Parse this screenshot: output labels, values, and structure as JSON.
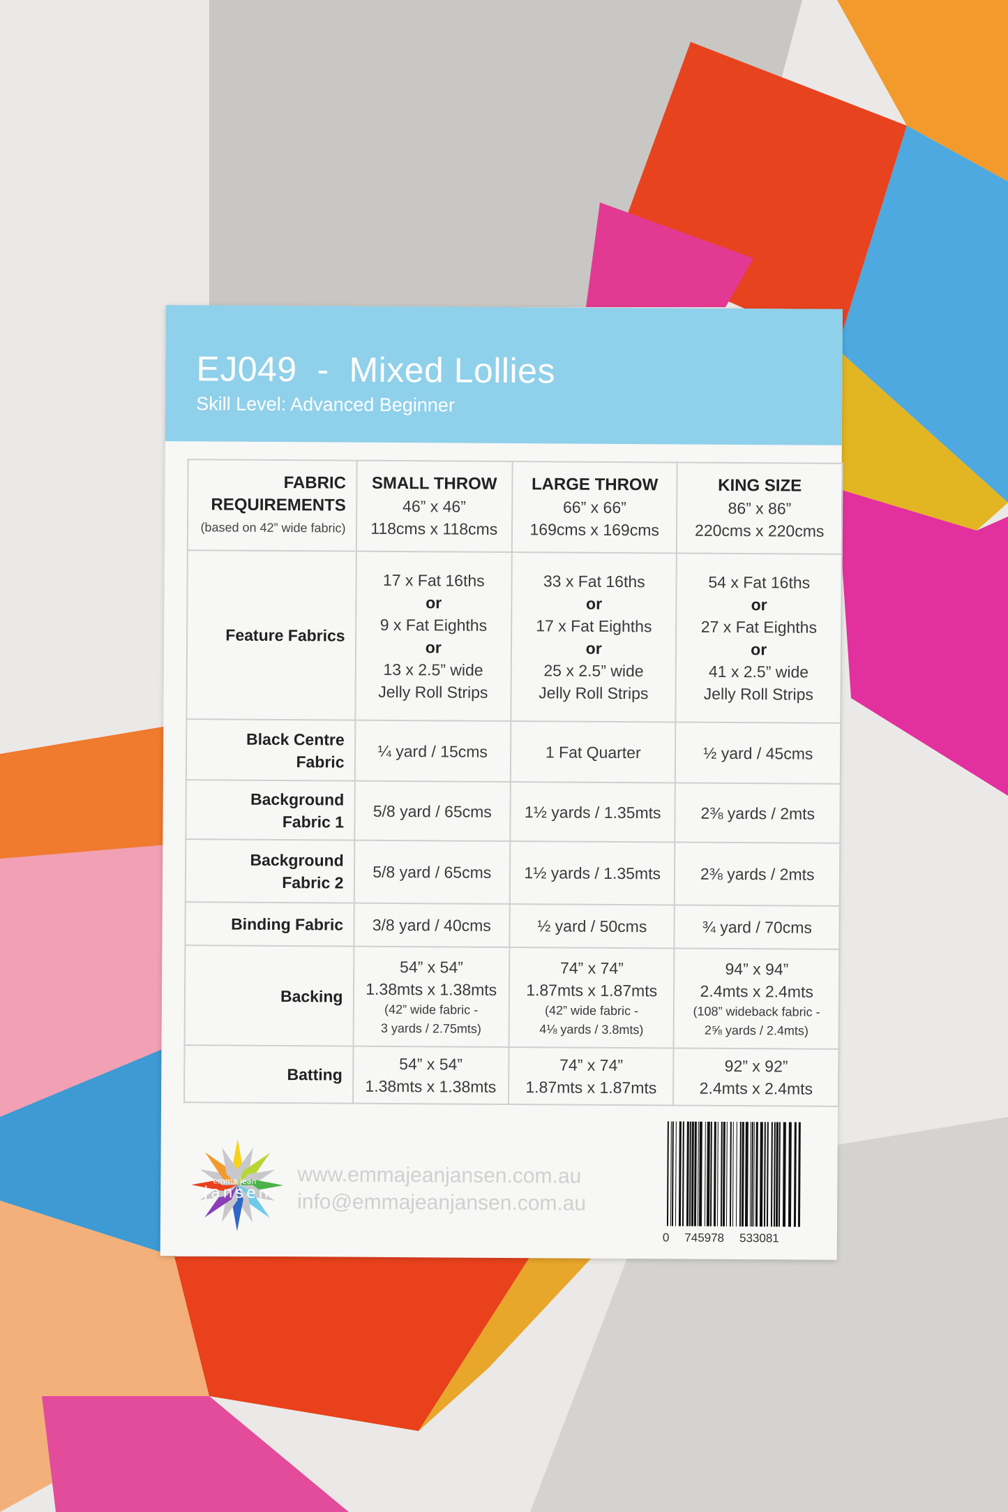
{
  "card": {
    "title": "EJ049  -  Mixed Lollies",
    "skill_level": "Skill Level: Advanced Beginner",
    "header_color": "#8fd0ea"
  },
  "table": {
    "corner": {
      "lines": [
        "FABRIC",
        "REQUIREMENTS"
      ],
      "note": "(based on 42” wide fabric)"
    },
    "columns": [
      {
        "name": "SMALL THROW",
        "size_in": "46” x  46”",
        "size_cm": "118cms x 118cms"
      },
      {
        "name": "LARGE THROW",
        "size_in": "66” x  66”",
        "size_cm": "169cms x 169cms"
      },
      {
        "name": "KING SIZE",
        "size_in": "86” x  86”",
        "size_cm": "220cms x 220cms"
      }
    ],
    "rows": [
      {
        "label": "Feature Fabrics",
        "h": 242,
        "cells": [
          {
            "lines": [
              "17 x Fat 16ths",
              "or",
              "9 x Fat Eighths",
              "or",
              "13 x 2.5” wide",
              "Jelly Roll Strips"
            ]
          },
          {
            "lines": [
              "33 x Fat 16ths",
              "or",
              "17 x Fat Eighths",
              "or",
              "25 x 2.5” wide",
              "Jelly Roll Strips"
            ]
          },
          {
            "lines": [
              "54 x Fat 16ths",
              "or",
              "27 x Fat Eighths",
              "or",
              "41 x 2.5” wide",
              "Jelly Roll Strips"
            ]
          }
        ]
      },
      {
        "label": "Black Centre Fabric",
        "h": 87,
        "cells": [
          {
            "lines": [
              "¼ yard / 15cms"
            ]
          },
          {
            "lines": [
              "1 Fat Quarter"
            ]
          },
          {
            "lines": [
              "½ yard / 45cms"
            ]
          }
        ]
      },
      {
        "label": "Background Fabric 1",
        "h": 85,
        "cells": [
          {
            "lines": [
              "5/8 yard / 65cms"
            ]
          },
          {
            "lines": [
              "1½ yards / 1.35mts"
            ]
          },
          {
            "lines": [
              "2⅜ yards / 2mts"
            ]
          }
        ]
      },
      {
        "label": "Background Fabric 2",
        "h": 90,
        "cells": [
          {
            "lines": [
              "5/8 yard / 65cms"
            ]
          },
          {
            "lines": [
              "1½ yards / 1.35mts"
            ]
          },
          {
            "lines": [
              "2⅜ yards / 2mts"
            ]
          }
        ]
      },
      {
        "label": "Binding Fabric",
        "h": 62,
        "cells": [
          {
            "lines": [
              "3/8 yard / 40cms"
            ]
          },
          {
            "lines": [
              "½ yard / 50cms"
            ]
          },
          {
            "lines": [
              "¾ yard / 70cms"
            ]
          }
        ]
      },
      {
        "label": "Backing",
        "h": 143,
        "cells": [
          {
            "lines": [
              "54” x 54”",
              "1.38mts x 1.38mts"
            ],
            "note": [
              "(42” wide fabric -",
              "3 yards / 2.75mts)"
            ]
          },
          {
            "lines": [
              "74” x 74”",
              "1.87mts x 1.87mts"
            ],
            "note": [
              "(42” wide fabric -",
              "4⅛ yards / 3.8mts)"
            ]
          },
          {
            "lines": [
              "94” x 94”",
              "2.4mts x 2.4mts"
            ],
            "note": [
              "(108” wideback fabric -",
              "2⅝ yards / 2.4mts)"
            ]
          }
        ]
      },
      {
        "label": "Batting",
        "h": 82,
        "cells": [
          {
            "lines": [
              "54” x 54”",
              "1.38mts x 1.38mts"
            ]
          },
          {
            "lines": [
              "74” x 74”",
              "1.87mts x 1.87mts"
            ]
          },
          {
            "lines": [
              "92” x 92”",
              "2.4mts x 2.4mts"
            ]
          }
        ]
      }
    ]
  },
  "footer": {
    "logo_text_top": "emma jean",
    "logo_text_bottom": "jansen",
    "website": "www.emmajeanjansen.com.au",
    "email": "info@emmajeanjansen.com.au",
    "barcode_digits": [
      "0",
      "745978",
      "533081"
    ]
  }
}
